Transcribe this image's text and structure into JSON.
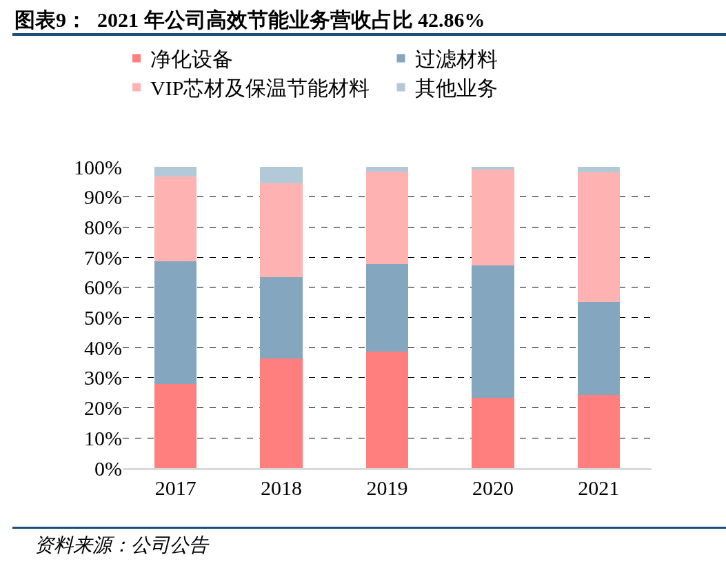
{
  "chart_data": {
    "type": "bar",
    "stacked": true,
    "title": "图表9：  2021 年公司高效节能业务营收占比 42.86%",
    "annotations": [
      "资料来源：公司公告"
    ],
    "categories": [
      "2017",
      "2018",
      "2019",
      "2020",
      "2021"
    ],
    "series": [
      {
        "name": "净化设备",
        "color": "#ff7f7f",
        "values": [
          27.9,
          36.5,
          38.6,
          23.3,
          24.3
        ]
      },
      {
        "name": "过滤材料",
        "color": "#84a6bf",
        "values": [
          40.8,
          26.9,
          29.1,
          43.9,
          30.8
        ]
      },
      {
        "name": "VIP芯材及保温节能材料",
        "color": "#ffb2b2",
        "values": [
          28.1,
          31.2,
          30.7,
          31.8,
          43.1
        ]
      },
      {
        "name": "其他业务",
        "color": "#b4c9d8",
        "values": [
          3.2,
          5.4,
          1.6,
          1.0,
          1.8
        ]
      }
    ],
    "ylim": [
      0,
      100
    ],
    "yticks": [
      {
        "value": 0,
        "label": "0%"
      },
      {
        "value": 10,
        "label": "10%"
      },
      {
        "value": 20,
        "label": "20%"
      },
      {
        "value": 30,
        "label": "30%"
      },
      {
        "value": 40,
        "label": "40%"
      },
      {
        "value": 50,
        "label": "50%"
      },
      {
        "value": 60,
        "label": "60%"
      },
      {
        "value": 70,
        "label": "70%"
      },
      {
        "value": 80,
        "label": "80%"
      },
      {
        "value": 90,
        "label": "90%"
      },
      {
        "value": 100,
        "label": "100%"
      }
    ],
    "grid": "y",
    "legend": "top"
  }
}
